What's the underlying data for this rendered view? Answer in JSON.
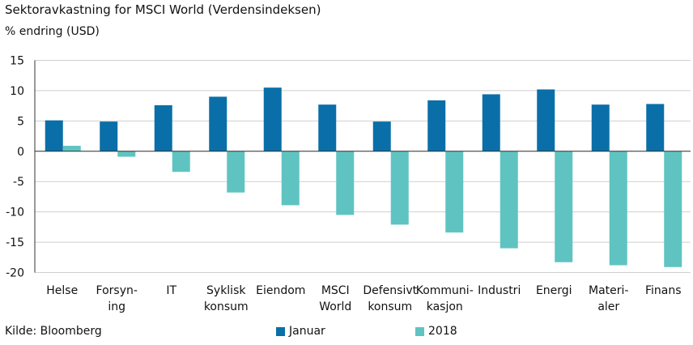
{
  "chart_data": {
    "type": "bar",
    "title": "Sektoravkastning for MSCI World (Verdensindeksen)",
    "ylabel": "% endring (USD)",
    "source": "Kilde: Bloomberg",
    "categories": [
      [
        "Helse"
      ],
      [
        "Forsyn-",
        "ing"
      ],
      [
        "IT"
      ],
      [
        "Syklisk",
        "konsum"
      ],
      [
        "Eiendom"
      ],
      [
        "MSCI",
        "World"
      ],
      [
        "Defensivt",
        "konsum"
      ],
      [
        "Kommuni-",
        "kasjon"
      ],
      [
        "Industri"
      ],
      [
        "Energi"
      ],
      [
        "Materi-",
        "aler"
      ],
      [
        "Finans"
      ]
    ],
    "series": [
      {
        "name": "Januar",
        "color": "#0a6fa8",
        "values": [
          5.1,
          4.9,
          7.6,
          9.0,
          10.5,
          7.7,
          4.9,
          8.4,
          9.4,
          10.2,
          7.7,
          7.8
        ]
      },
      {
        "name": "2018",
        "color": "#5fc4c1",
        "values": [
          0.9,
          -0.9,
          -3.4,
          -6.8,
          -8.9,
          -10.5,
          -12.1,
          -13.4,
          -16.0,
          -18.3,
          -18.8,
          -19.1
        ]
      }
    ],
    "ylim": [
      -20,
      15
    ],
    "yticks": [
      15,
      10,
      5,
      0,
      -5,
      -10,
      -15,
      -20
    ],
    "grid": true,
    "legend_position": "bottom"
  }
}
